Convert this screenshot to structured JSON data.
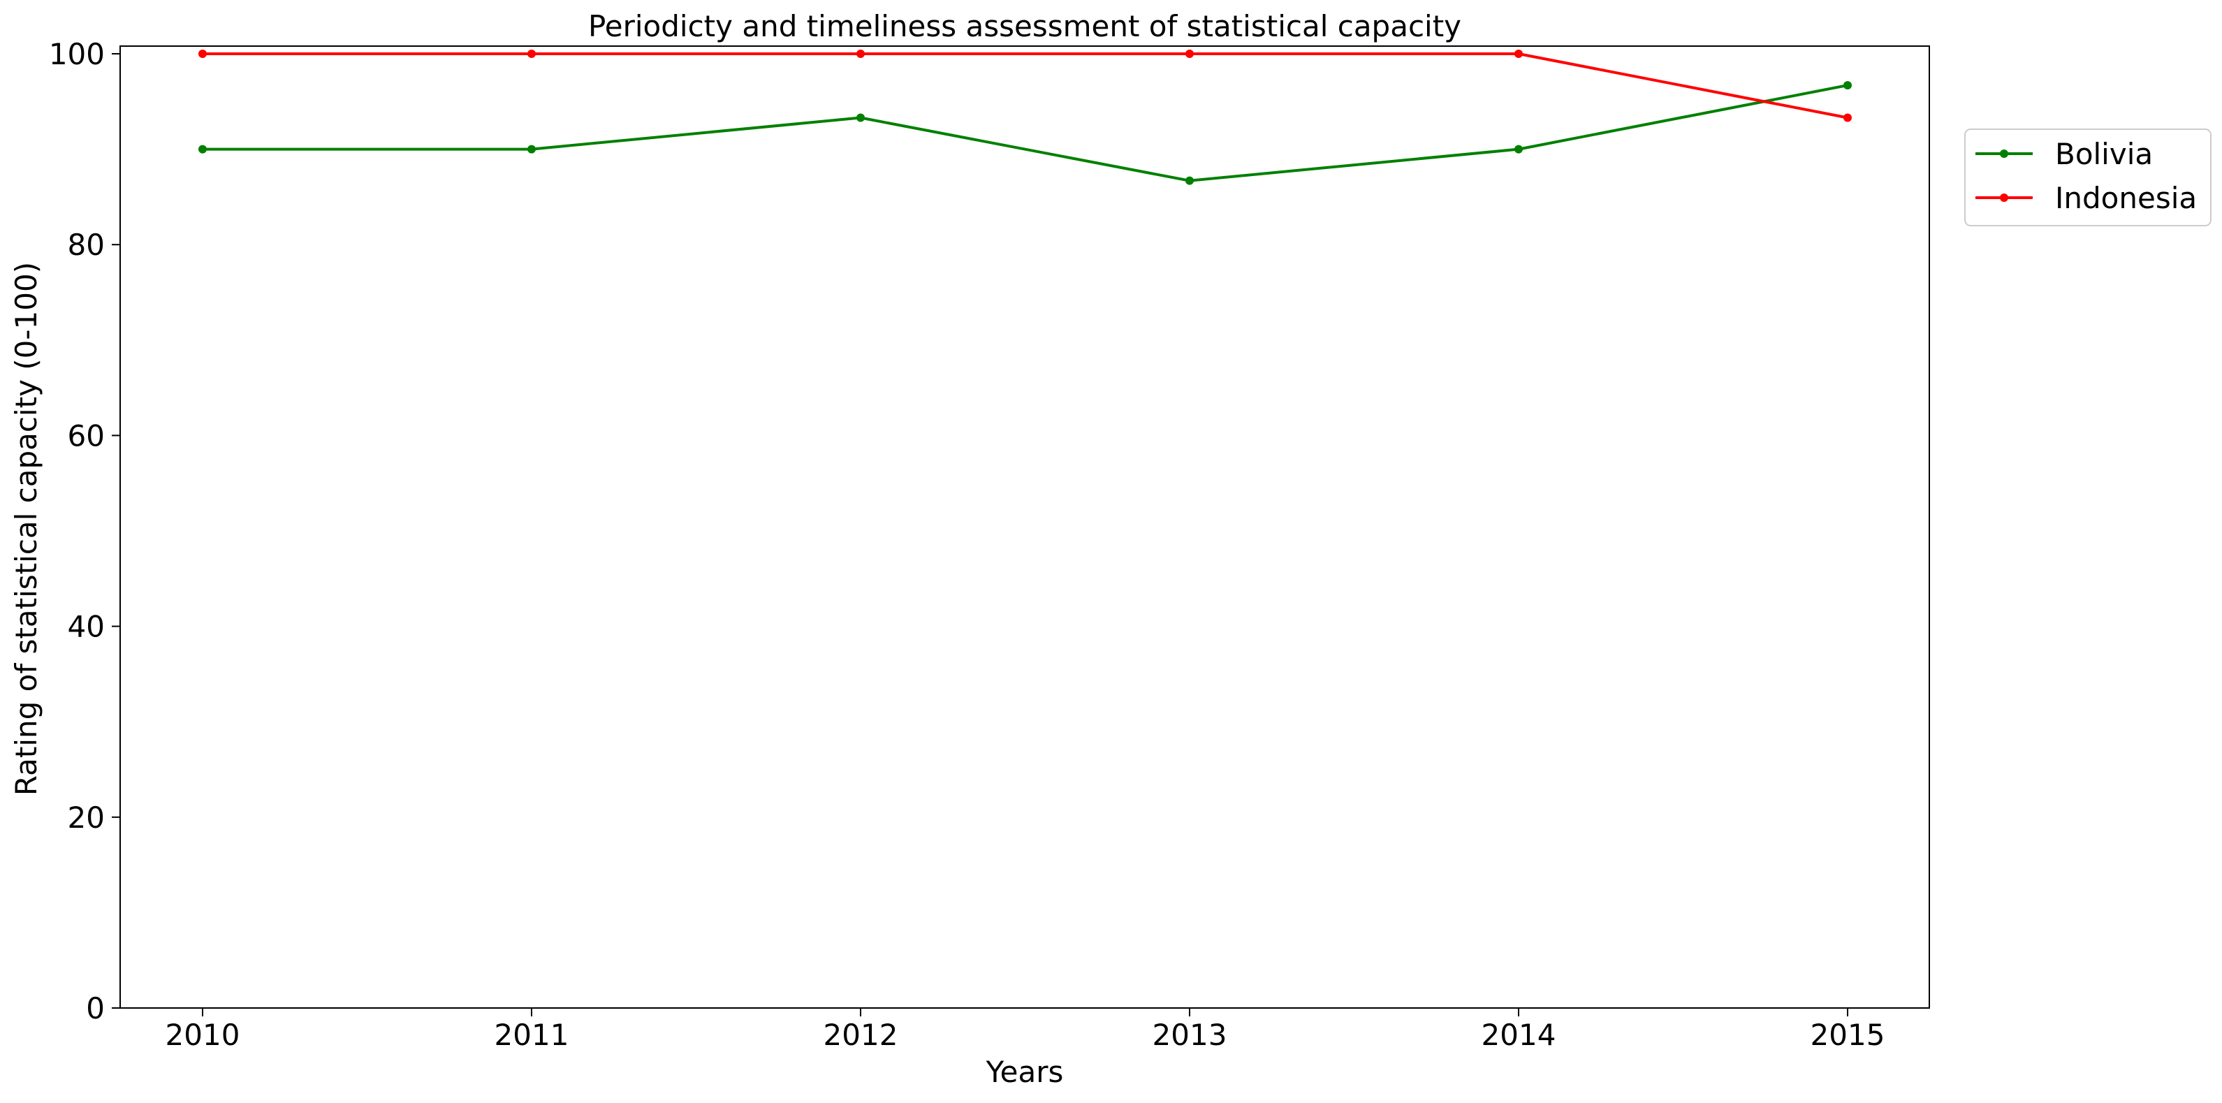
{
  "chart_data": {
    "type": "line",
    "title": "Periodicty and timeliness assessment of statistical capacity",
    "xlabel": "Years",
    "ylabel": "Rating of statistical capacity (0-100)",
    "x": [
      "2010",
      "2011",
      "2012",
      "2013",
      "2014",
      "2015"
    ],
    "ylim": [
      0,
      100
    ],
    "yticks": [
      "0",
      "20",
      "40",
      "60",
      "80",
      "100"
    ],
    "grid": false,
    "legend_position": "outside-right-top",
    "series": [
      {
        "name": "Bolivia",
        "color": "#008000",
        "values": [
          90,
          90,
          93.3,
          86.7,
          90,
          96.7
        ]
      },
      {
        "name": "Indonesia",
        "color": "#ff0000",
        "values": [
          100,
          100,
          100,
          100,
          100,
          93.3
        ]
      }
    ]
  }
}
